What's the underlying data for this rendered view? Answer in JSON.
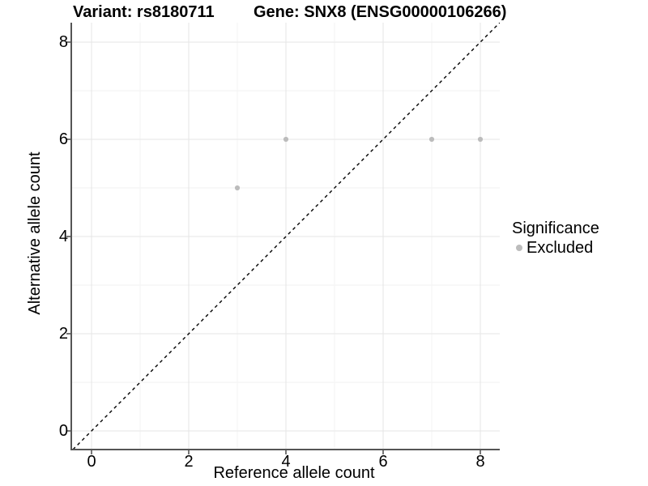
{
  "header": {
    "variant_title": "Variant: rs8180711",
    "gene_title": "Gene: SNX8 (ENSG00000106266)"
  },
  "chart_data": {
    "type": "scatter",
    "title_left": "Variant: rs8180711",
    "title_right": "Gene: SNX8 (ENSG00000106266)",
    "xlabel": "Reference allele count",
    "ylabel": "Alternative allele count",
    "xlim": [
      -0.4167,
      8.4
    ],
    "ylim": [
      -0.3833,
      8.4
    ],
    "xticks": {
      "values": [
        0,
        2,
        4,
        6,
        8
      ],
      "labels": [
        "0",
        "2",
        "4",
        "6",
        "8"
      ]
    },
    "yticks": {
      "values": [
        0,
        2,
        4,
        6,
        8
      ],
      "labels": [
        "0",
        "2",
        "4",
        "6",
        "8"
      ]
    },
    "minor_grid_values": [
      1,
      3,
      5,
      7
    ],
    "grid": "on",
    "identity_line": {
      "style": "dashed",
      "color": "#000000",
      "from": [
        -0.3833,
        -0.3833
      ],
      "to": [
        8.4,
        8.4
      ]
    },
    "series": [
      {
        "name": "Excluded",
        "marker": "circle",
        "color": "#bcbcbc",
        "points": [
          [
            3,
            5
          ],
          [
            4,
            6
          ],
          [
            7,
            6
          ],
          [
            8,
            6
          ]
        ]
      }
    ],
    "colors": {
      "major_grid": "#e6e6e6",
      "minor_grid": "#f2f2f2",
      "axis_line": "#555555",
      "point": "#bcbcbc",
      "text": "#000000"
    },
    "legend": {
      "title": "Significance",
      "position": "right",
      "entries": [
        {
          "label": "Excluded",
          "color": "#bcbcbc",
          "marker": "circle"
        }
      ]
    }
  }
}
